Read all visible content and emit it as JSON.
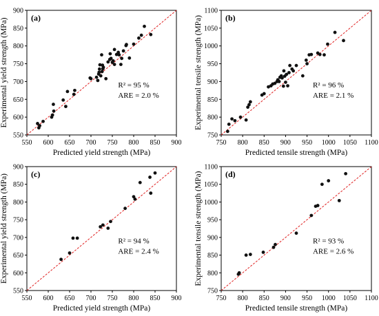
{
  "chart_data": [
    {
      "panel_label": "(a)",
      "type": "scatter",
      "xlabel": "Predicted yield strength (MPa)",
      "ylabel": "Experimental yield strength (MPa)",
      "xlim": [
        550,
        900
      ],
      "ylim": [
        550,
        900
      ],
      "xticks": [
        550,
        600,
        650,
        700,
        750,
        800,
        850,
        900
      ],
      "yticks": [
        550,
        600,
        650,
        700,
        750,
        800,
        850,
        900
      ],
      "r2_text": "R² = 95 %",
      "are_text": "ARE = 2.0 %",
      "parity_line": true,
      "points": [
        [
          575,
          582
        ],
        [
          578,
          570
        ],
        [
          580,
          576
        ],
        [
          588,
          588
        ],
        [
          608,
          600
        ],
        [
          610,
          606
        ],
        [
          612,
          636
        ],
        [
          613,
          617
        ],
        [
          635,
          648
        ],
        [
          641,
          630
        ],
        [
          645,
          672
        ],
        [
          660,
          664
        ],
        [
          662,
          675
        ],
        [
          698,
          710
        ],
        [
          700,
          708
        ],
        [
          713,
          712
        ],
        [
          716,
          703
        ],
        [
          718,
          721
        ],
        [
          719,
          726
        ],
        [
          720,
          735
        ],
        [
          721,
          747
        ],
        [
          723,
          716
        ],
        [
          725,
          775
        ],
        [
          726,
          728
        ],
        [
          727,
          746
        ],
        [
          728,
          736
        ],
        [
          729,
          740
        ],
        [
          735,
          708
        ],
        [
          740,
          755
        ],
        [
          744,
          762
        ],
        [
          745,
          778
        ],
        [
          747,
          765
        ],
        [
          750,
          754
        ],
        [
          752,
          758
        ],
        [
          755,
          748
        ],
        [
          755,
          790
        ],
        [
          760,
          776
        ],
        [
          764,
          782
        ],
        [
          766,
          775
        ],
        [
          770,
          748
        ],
        [
          772,
          765
        ],
        [
          776,
          786
        ],
        [
          782,
          801
        ],
        [
          783,
          804
        ],
        [
          790,
          766
        ],
        [
          800,
          805
        ],
        [
          812,
          822
        ],
        [
          818,
          830
        ],
        [
          825,
          855
        ],
        [
          840,
          832
        ]
      ]
    },
    {
      "panel_label": "(b)",
      "type": "scatter",
      "xlabel": "Predicted tensile strength (MPa)",
      "ylabel": "Experimental tensile strength (MPa)",
      "xlim": [
        750,
        1100
      ],
      "ylim": [
        750,
        1100
      ],
      "xticks": [
        750,
        800,
        850,
        900,
        950,
        1000,
        1050,
        1100
      ],
      "yticks": [
        750,
        800,
        850,
        900,
        950,
        1000,
        1050,
        1100
      ],
      "r2_text": "R² = 96 %",
      "are_text": "ARE = 2.1 %",
      "parity_line": true,
      "points": [
        [
          765,
          760
        ],
        [
          768,
          780
        ],
        [
          775,
          795
        ],
        [
          782,
          790
        ],
        [
          795,
          800
        ],
        [
          808,
          792
        ],
        [
          812,
          828
        ],
        [
          815,
          835
        ],
        [
          818,
          843
        ],
        [
          845,
          862
        ],
        [
          850,
          866
        ],
        [
          860,
          885
        ],
        [
          866,
          888
        ],
        [
          870,
          893
        ],
        [
          875,
          895
        ],
        [
          880,
          900
        ],
        [
          882,
          905
        ],
        [
          885,
          900
        ],
        [
          887,
          912
        ],
        [
          890,
          916
        ],
        [
          892,
          910
        ],
        [
          895,
          887
        ],
        [
          896,
          930
        ],
        [
          898,
          915
        ],
        [
          900,
          898
        ],
        [
          902,
          920
        ],
        [
          905,
          888
        ],
        [
          908,
          925
        ],
        [
          910,
          945
        ],
        [
          915,
          935
        ],
        [
          918,
          930
        ],
        [
          925,
          945
        ],
        [
          940,
          916
        ],
        [
          948,
          960
        ],
        [
          950,
          950
        ],
        [
          955,
          975
        ],
        [
          960,
          976
        ],
        [
          975,
          980
        ],
        [
          980,
          976
        ],
        [
          990,
          975
        ],
        [
          998,
          1005
        ],
        [
          1015,
          1038
        ],
        [
          1035,
          1015
        ]
      ]
    },
    {
      "panel_label": "(c)",
      "type": "scatter",
      "xlabel": "Predicted yield strength (MPa)",
      "ylabel": "Experimental yield strength (MPa)",
      "xlim": [
        550,
        900
      ],
      "ylim": [
        550,
        900
      ],
      "xticks": [
        550,
        600,
        650,
        700,
        750,
        800,
        850,
        900
      ],
      "yticks": [
        550,
        600,
        650,
        700,
        750,
        800,
        850,
        900
      ],
      "r2_text": "R² = 94 %",
      "are_text": "ARE = 2.4 %",
      "parity_line": true,
      "points": [
        [
          630,
          638
        ],
        [
          650,
          656
        ],
        [
          658,
          698
        ],
        [
          668,
          698
        ],
        [
          722,
          730
        ],
        [
          728,
          735
        ],
        [
          740,
          726
        ],
        [
          746,
          745
        ],
        [
          780,
          782
        ],
        [
          800,
          815
        ],
        [
          803,
          808
        ],
        [
          815,
          855
        ],
        [
          838,
          870
        ],
        [
          840,
          825
        ],
        [
          850,
          882
        ]
      ]
    },
    {
      "panel_label": "(d)",
      "type": "scatter",
      "xlabel": "Predicted tensile strength (MPa)",
      "ylabel": "Experimental tensile strength (MPa)",
      "xlim": [
        750,
        1100
      ],
      "ylim": [
        750,
        1100
      ],
      "xticks": [
        750,
        800,
        850,
        900,
        950,
        1000,
        1050,
        1100
      ],
      "yticks": [
        750,
        800,
        850,
        900,
        950,
        1000,
        1050,
        1100
      ],
      "r2_text": "R² = 93 %",
      "are_text": "ARE = 2.6 %",
      "parity_line": true,
      "points": [
        [
          790,
          796
        ],
        [
          792,
          800
        ],
        [
          808,
          850
        ],
        [
          818,
          852
        ],
        [
          848,
          858
        ],
        [
          872,
          872
        ],
        [
          876,
          880
        ],
        [
          925,
          912
        ],
        [
          960,
          962
        ],
        [
          970,
          988
        ],
        [
          975,
          990
        ],
        [
          985,
          1050
        ],
        [
          1000,
          1060
        ],
        [
          1025,
          1004
        ],
        [
          1040,
          1080
        ]
      ]
    }
  ],
  "style": {
    "point_color": "#111111",
    "parity_line_color": "#e02020",
    "axis_color": "#000000"
  }
}
